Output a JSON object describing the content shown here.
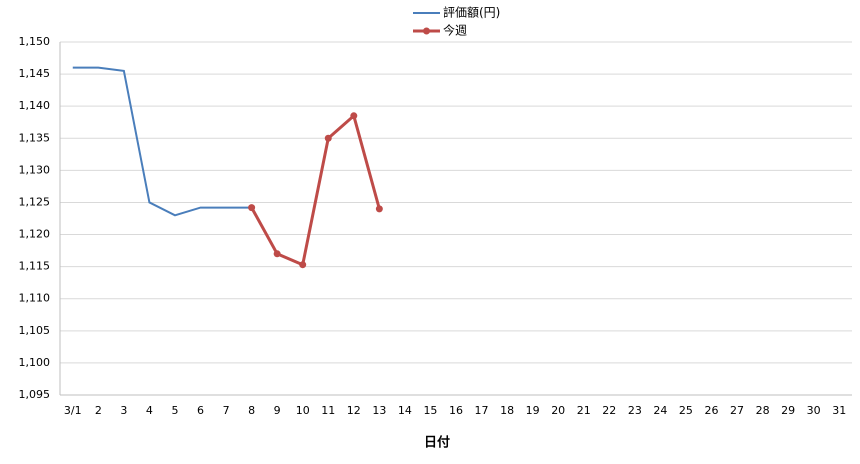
{
  "chart_data": {
    "type": "line",
    "x_label": "日付",
    "categories": [
      "3/1",
      "2",
      "3",
      "4",
      "5",
      "6",
      "7",
      "8",
      "9",
      "10",
      "11",
      "12",
      "13",
      "14",
      "15",
      "16",
      "17",
      "18",
      "19",
      "20",
      "21",
      "22",
      "23",
      "24",
      "25",
      "26",
      "27",
      "28",
      "29",
      "30",
      "31"
    ],
    "series": [
      {
        "name": "評価額(円)",
        "color": "#4a7ebb",
        "markers": false,
        "values": [
          1146,
          1146,
          1145.5,
          1125,
          1123,
          1124.2,
          1124.2,
          1124.2,
          null,
          null,
          null,
          null,
          null,
          null,
          null,
          null,
          null,
          null,
          null,
          null,
          null,
          null,
          null,
          null,
          null,
          null,
          null,
          null,
          null,
          null,
          null
        ]
      },
      {
        "name": "今週",
        "color": "#be4b48",
        "markers": true,
        "values": [
          null,
          null,
          null,
          null,
          null,
          null,
          null,
          1124.2,
          1117,
          1115.3,
          1135,
          1138.5,
          1124,
          null,
          null,
          null,
          null,
          null,
          null,
          null,
          null,
          null,
          null,
          null,
          null,
          null,
          null,
          null,
          null,
          null,
          null
        ]
      }
    ],
    "ylim": [
      1095,
      1150
    ],
    "yticks": [
      {
        "value": 1095,
        "label": "1,095"
      },
      {
        "value": 1100,
        "label": "1,100"
      },
      {
        "value": 1105,
        "label": "1,105"
      },
      {
        "value": 1110,
        "label": "1,110"
      },
      {
        "value": 1115,
        "label": "1,115"
      },
      {
        "value": 1120,
        "label": "1,120"
      },
      {
        "value": 1125,
        "label": "1,125"
      },
      {
        "value": 1130,
        "label": "1,130"
      },
      {
        "value": 1135,
        "label": "1,135"
      },
      {
        "value": 1140,
        "label": "1,140"
      },
      {
        "value": 1145,
        "label": "1,145"
      },
      {
        "value": 1150,
        "label": "1,150"
      }
    ],
    "grid": true,
    "legend": "top"
  }
}
